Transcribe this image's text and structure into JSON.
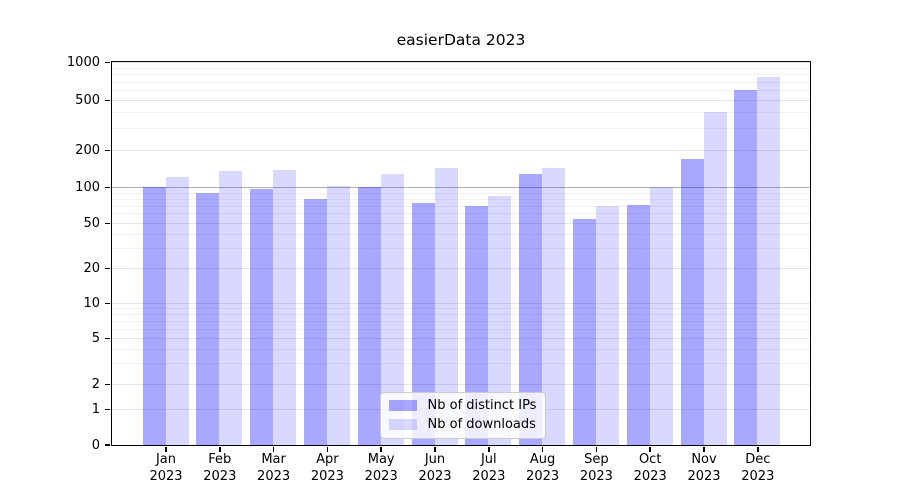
{
  "title": "easierData 2023",
  "colors": {
    "bar_ips": "#0000ff57",
    "bar_downloads": "#0000ff26",
    "grid_major": "#e5e5e5",
    "grid_minor": "#f2f2f2",
    "hline_100": "#b0b0b0",
    "spine": "#000000",
    "legend_bg": "#ffffffcc",
    "legend_border": "#cccccc"
  },
  "legend": {
    "items": [
      {
        "label": "Nb of distinct IPs",
        "swatch": "bar_ips"
      },
      {
        "label": "Nb of downloads",
        "swatch": "bar_downloads"
      }
    ],
    "position": "lower center"
  },
  "chart_data": {
    "type": "bar",
    "title": "easierData 2023",
    "categories": [
      "Jan 2023",
      "Feb 2023",
      "Mar 2023",
      "Apr 2023",
      "May 2023",
      "Jun 2023",
      "Jul 2023",
      "Aug 2023",
      "Sep 2023",
      "Oct 2023",
      "Nov 2023",
      "Dec 2023"
    ],
    "x_tick_months": [
      "Jan",
      "Feb",
      "Mar",
      "Apr",
      "May",
      "Jun",
      "Jul",
      "Aug",
      "Sep",
      "Oct",
      "Nov",
      "Dec"
    ],
    "x_tick_year": "2023",
    "series": [
      {
        "name": "Nb of distinct IPs",
        "values": [
          100,
          90,
          96,
          80,
          100,
          74,
          69,
          127,
          54,
          71,
          170,
          605
        ]
      },
      {
        "name": "Nb of downloads",
        "values": [
          121,
          135,
          138,
          102,
          128,
          142,
          84,
          144,
          69,
          101,
          400,
          760
        ]
      }
    ],
    "xlabel": "",
    "ylabel": "",
    "yscale": "symlog",
    "y_ticks": [
      0,
      1,
      2,
      5,
      10,
      20,
      50,
      100,
      200,
      500,
      1000
    ],
    "ylim": [
      0,
      1000
    ],
    "grid": true,
    "highlight_line_y": 100,
    "legend_position": "lower center"
  }
}
